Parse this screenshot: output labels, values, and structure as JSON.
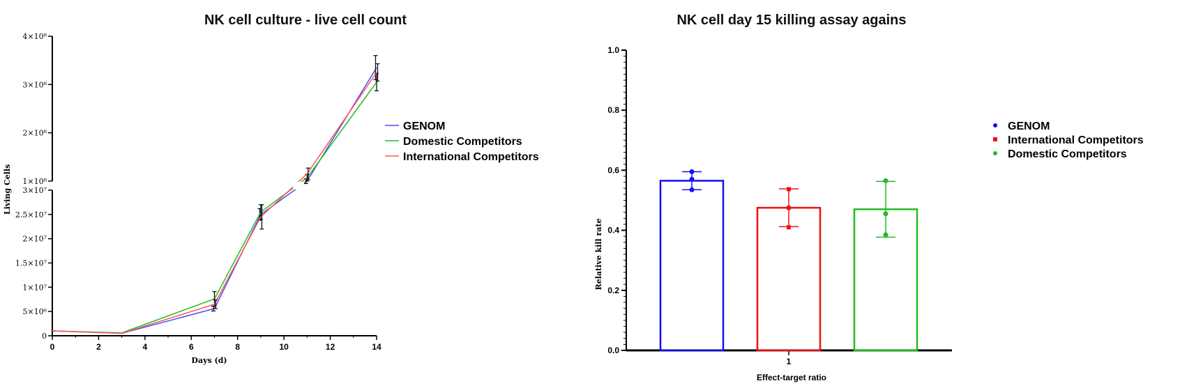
{
  "chart_data": [
    {
      "type": "line",
      "title": "NK cell culture - live cell count",
      "xlabel": "Days (d)",
      "ylabel": "Living Cells",
      "xlim": [
        0,
        14
      ],
      "x_ticks": [
        "0",
        "2",
        "4",
        "6",
        "8",
        "10",
        "12",
        "14"
      ],
      "y_axis_broken": true,
      "y_ticks_lower": [
        "0",
        "5×10⁶",
        "1×10⁷",
        "1.5×10⁷",
        "2×10⁷",
        "2.5×10⁷",
        "3×10⁷"
      ],
      "y_ticks_upper": [
        "1×10⁸",
        "2×10⁸",
        "3×10⁸",
        "4×10⁸"
      ],
      "legend_position": "right",
      "x": [
        0,
        3,
        7,
        9,
        11,
        14
      ],
      "series": [
        {
          "name": "GENOM",
          "color": "#4a4aff",
          "values": [
            1000000,
            500000,
            5600000,
            25000000,
            100000000,
            335000000
          ],
          "error": [
            0,
            0,
            500000,
            1200000,
            5000000,
            25000000
          ]
        },
        {
          "name": "Domestic Competitors",
          "color": "#22bb22",
          "values": [
            1000000,
            600000,
            7600000,
            25500000,
            107000000,
            305000000
          ],
          "error": [
            0,
            0,
            1500000,
            1500000,
            7000000,
            18000000
          ]
        },
        {
          "name": "International Competitors",
          "color": "#ff5555",
          "values": [
            1000000,
            500000,
            6500000,
            24500000,
            115000000,
            325000000
          ],
          "error": [
            0,
            0,
            900000,
            2500000,
            12000000,
            18000000
          ]
        }
      ]
    },
    {
      "type": "bar",
      "title": "NK cell day 15 killing assay agains",
      "xlabel": "Effect-target ratio",
      "ylabel": "Relative kill rate",
      "ylim": [
        0,
        1.0
      ],
      "y_ticks": [
        "0.0",
        "0.2",
        "0.4",
        "0.6",
        "0.8",
        "1.0"
      ],
      "categories": [
        "1"
      ],
      "legend_position": "right",
      "series": [
        {
          "name": "GENOM",
          "color": "#1010ee",
          "marker": "circle",
          "values": [
            0.565
          ],
          "error": [
            0.03
          ],
          "points": [
            0.535,
            0.57,
            0.595
          ]
        },
        {
          "name": "International Competitors",
          "color": "#ee1111",
          "marker": "square",
          "values": [
            0.475
          ],
          "error": [
            0.063
          ],
          "points": [
            0.41,
            0.475,
            0.537
          ]
        },
        {
          "name": "Domestic Competitors",
          "color": "#22bb22",
          "marker": "circle",
          "values": [
            0.47
          ],
          "error": [
            0.093
          ],
          "points": [
            0.385,
            0.455,
            0.565
          ]
        }
      ]
    }
  ]
}
